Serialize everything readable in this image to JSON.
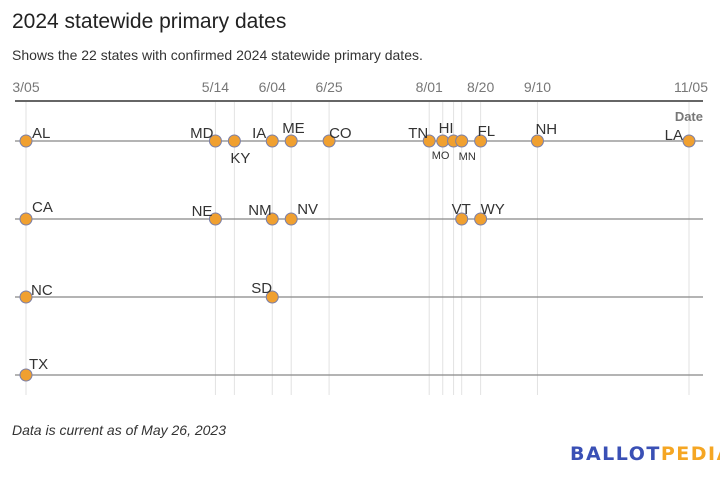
{
  "title": "2024 statewide primary dates",
  "subtitle": "Shows the 22 states with confirmed 2024 statewide primary dates.",
  "note": "Data is current as of May 26, 2023",
  "logo": {
    "part1": "BALLOT",
    "part2": "PEDIA"
  },
  "colors": {
    "dot": "#f0a030",
    "dot_stroke": "#7a7fa8",
    "row_line": "#888888",
    "grid": "#e2e2e2",
    "axis": "#333333",
    "logo_blue": "#3a50b5",
    "logo_orange": "#f5a623"
  },
  "chart_data": {
    "type": "scatter",
    "xlabel": "Date",
    "x_ticks": [
      "3/05",
      "5/14",
      "6/04",
      "6/25",
      "8/01",
      "8/20",
      "9/10",
      "11/05"
    ],
    "xlim": [
      "2024-03-05",
      "2024-11-05"
    ],
    "grid": true,
    "rows": [
      {
        "points": [
          {
            "state": "AL",
            "date": "2024-03-05"
          },
          {
            "state": "MD",
            "date": "2024-05-14"
          },
          {
            "state": "KY",
            "date": "2024-05-21"
          },
          {
            "state": "IA",
            "date": "2024-06-04"
          },
          {
            "state": "ME",
            "date": "2024-06-11"
          },
          {
            "state": "CO",
            "date": "2024-06-25"
          },
          {
            "state": "TN",
            "date": "2024-08-01"
          },
          {
            "state": "MO",
            "date": "2024-08-06"
          },
          {
            "state": "HI",
            "date": "2024-08-10"
          },
          {
            "state": "MN",
            "date": "2024-08-13"
          },
          {
            "state": "FL",
            "date": "2024-08-20"
          },
          {
            "state": "NH",
            "date": "2024-09-10"
          },
          {
            "state": "LA",
            "date": "2024-11-05"
          }
        ]
      },
      {
        "points": [
          {
            "state": "CA",
            "date": "2024-03-05"
          },
          {
            "state": "NE",
            "date": "2024-05-14"
          },
          {
            "state": "NM",
            "date": "2024-06-04"
          },
          {
            "state": "NV",
            "date": "2024-06-11"
          },
          {
            "state": "VT",
            "date": "2024-08-13"
          },
          {
            "state": "WY",
            "date": "2024-08-20"
          }
        ]
      },
      {
        "points": [
          {
            "state": "NC",
            "date": "2024-03-05"
          },
          {
            "state": "SD",
            "date": "2024-06-04"
          }
        ]
      },
      {
        "points": [
          {
            "state": "TX",
            "date": "2024-03-05"
          }
        ]
      }
    ]
  }
}
